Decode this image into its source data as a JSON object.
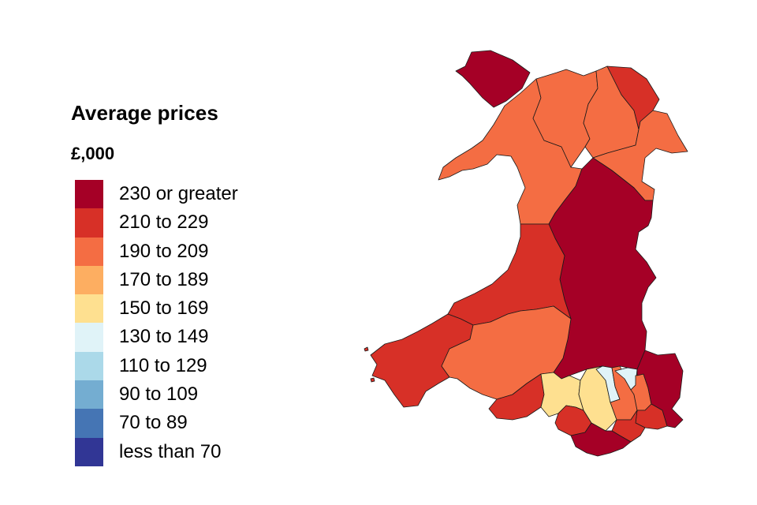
{
  "legend": {
    "title": "Average prices",
    "unit": "£,000",
    "bands": [
      {
        "label": "230 or greater",
        "color": "#a50026"
      },
      {
        "label": "210 to 229",
        "color": "#d73027"
      },
      {
        "label": "190 to 209",
        "color": "#f46d43"
      },
      {
        "label": "170 to 189",
        "color": "#fdae61"
      },
      {
        "label": "150 to 169",
        "color": "#fee090"
      },
      {
        "label": "130 to 149",
        "color": "#e0f3f8"
      },
      {
        "label": "110 to 129",
        "color": "#abd9e9"
      },
      {
        "label": "90 to 109",
        "color": "#74add1"
      },
      {
        "label": "70 to 89",
        "color": "#4575b4"
      },
      {
        "label": "less than 70",
        "color": "#313695"
      }
    ]
  },
  "regions": [
    {
      "name": "Isle of Anglesey",
      "band": "230 or greater"
    },
    {
      "name": "Gwynedd",
      "band": "190 to 209"
    },
    {
      "name": "Conwy",
      "band": "190 to 209"
    },
    {
      "name": "Denbighshire",
      "band": "190 to 209"
    },
    {
      "name": "Flintshire",
      "band": "210 to 229"
    },
    {
      "name": "Wrexham",
      "band": "190 to 209"
    },
    {
      "name": "Powys",
      "band": "230 or greater"
    },
    {
      "name": "Ceredigion",
      "band": "210 to 229"
    },
    {
      "name": "Pembrokeshire",
      "band": "210 to 229"
    },
    {
      "name": "Carmarthenshire",
      "band": "190 to 209"
    },
    {
      "name": "Swansea",
      "band": "210 to 229"
    },
    {
      "name": "Neath Port Talbot",
      "band": "150 to 169"
    },
    {
      "name": "Bridgend",
      "band": "210 to 229"
    },
    {
      "name": "Rhondda Cynon Taf",
      "band": "150 to 169"
    },
    {
      "name": "Merthyr Tydfil",
      "band": "130 to 149"
    },
    {
      "name": "Caerphilly",
      "band": "190 to 209"
    },
    {
      "name": "Blaenau Gwent",
      "band": "130 to 149"
    },
    {
      "name": "Torfaen",
      "band": "190 to 209"
    },
    {
      "name": "Monmouthshire",
      "band": "230 or greater"
    },
    {
      "name": "Newport",
      "band": "210 to 229"
    },
    {
      "name": "Cardiff",
      "band": "210 to 229"
    },
    {
      "name": "Vale of Glamorgan",
      "band": "230 or greater"
    }
  ]
}
